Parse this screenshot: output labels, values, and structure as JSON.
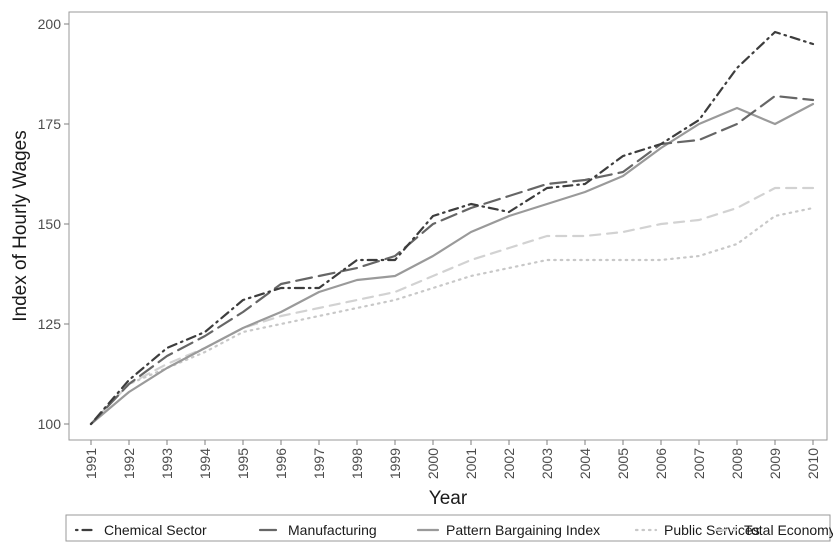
{
  "chart_data": {
    "type": "line",
    "xlabel": "Year",
    "ylabel": "Index of Hourly Wages",
    "ylim": [
      96,
      203
    ],
    "yticks": [
      100,
      125,
      150,
      175,
      200
    ],
    "categories": [
      "1991",
      "1992",
      "1993",
      "1994",
      "1995",
      "1996",
      "1997",
      "1998",
      "1999",
      "2000",
      "2001",
      "2002",
      "2003",
      "2004",
      "2005",
      "2006",
      "2007",
      "2008",
      "2009",
      "2010"
    ],
    "grid": false,
    "legend_position": "bottom",
    "series": [
      {
        "name": "Chemical Sector",
        "style": "dotdash",
        "color": "#3d3d3d",
        "values": [
          100,
          111,
          119,
          123,
          131,
          134,
          134,
          141,
          141,
          152,
          155,
          153,
          159,
          160,
          167,
          170,
          176,
          189,
          198,
          195
        ]
      },
      {
        "name": "Manufacturing",
        "style": "longdash",
        "color": "#666666",
        "values": [
          100,
          110,
          117,
          122,
          128,
          135,
          137,
          139,
          142,
          150,
          154,
          157,
          160,
          161,
          163,
          170,
          171,
          175,
          182,
          181
        ]
      },
      {
        "name": "Pattern Bargaining Index",
        "style": "solid",
        "color": "#9a9a9a",
        "values": [
          100,
          108,
          114,
          119,
          124,
          128,
          133,
          136,
          137,
          142,
          148,
          152,
          155,
          158,
          162,
          169,
          175,
          179,
          175,
          180
        ]
      },
      {
        "name": "Public Services",
        "style": "dotted",
        "color": "#c8c8c8",
        "values": [
          100,
          110,
          114,
          118,
          123,
          125,
          127,
          129,
          131,
          134,
          137,
          139,
          141,
          141,
          141,
          141,
          142,
          145,
          152,
          154
        ]
      },
      {
        "name": "Total Economy",
        "style": "dashed",
        "color": "#d2d2d2",
        "values": [
          100,
          110,
          115,
          119,
          124,
          127,
          129,
          131,
          133,
          137,
          141,
          144,
          147,
          147,
          148,
          150,
          151,
          154,
          159,
          159
        ]
      }
    ]
  }
}
